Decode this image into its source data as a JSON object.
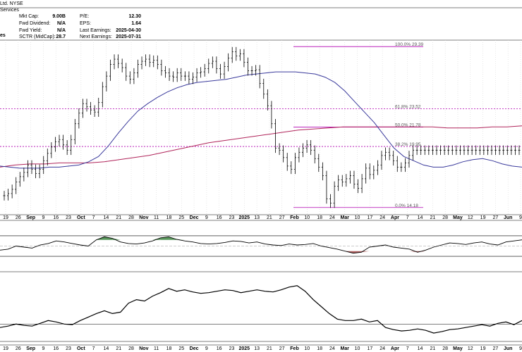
{
  "header": {
    "title_fragment": "Ltd. NYSE",
    "sector_fragment": "Services",
    "left_fragment": "es",
    "stats": [
      {
        "label": "Mkt Cap:",
        "value": "9.00B"
      },
      {
        "label": "Fwd Dividend:",
        "value": "N/A"
      },
      {
        "label": "Fwd Yield:",
        "value": "N/A"
      },
      {
        "label": "SCTR (MidCap):",
        "value": "28.7"
      }
    ],
    "stats2": [
      {
        "label": "P/E:",
        "value": "12.30"
      },
      {
        "label": "EPS:",
        "value": "1.64"
      },
      {
        "label": "Last Earnings:",
        "value": "2025-04-30"
      },
      {
        "label": "Next Earnings:",
        "value": "2025-07-31"
      }
    ]
  },
  "colors": {
    "price": "#000000",
    "ma_blue": "#3a3a9c",
    "ma_red": "#b0245a",
    "fib": "#b000b0",
    "osc_up": "#2e7d32",
    "osc_down": "#9c3a3a"
  },
  "chart_data": {
    "type": "line",
    "subtype": "ohlc-price-with-fibonacci-and-indicators",
    "x_axis_labels": [
      "19",
      "26",
      "Sep",
      "9",
      "16",
      "23",
      "Oct",
      "7",
      "14",
      "21",
      "28",
      "Nov",
      "11",
      "18",
      "25",
      "Dec",
      "9",
      "16",
      "23",
      "2025",
      "13",
      "21",
      "27",
      "Feb",
      "10",
      "18",
      "24",
      "Mar",
      "10",
      "17",
      "24",
      "Apr",
      "7",
      "14",
      "21",
      "28",
      "May",
      "12",
      "19",
      "27",
      "Jun",
      "9"
    ],
    "price_ylim": [
      13.5,
      30.0
    ],
    "fibonacci_levels": [
      {
        "label": "100.0% 29.39",
        "value": 29.39
      },
      {
        "label": "61.8% 23.52",
        "value": 23.52
      },
      {
        "label": "50.0% 21.78",
        "value": 21.78
      },
      {
        "label": "38.2% 19.95",
        "value": 19.95
      },
      {
        "label": "0.0% 14.18",
        "value": 14.18
      }
    ],
    "price_x": [
      0,
      2,
      4,
      6,
      8,
      10,
      12,
      14,
      16,
      18,
      20,
      22,
      24,
      26,
      28,
      30,
      32,
      34,
      36,
      38,
      40,
      42,
      44,
      46,
      48,
      50,
      52,
      54,
      56,
      58,
      60,
      62,
      64,
      66,
      68,
      70,
      72,
      74,
      76,
      78,
      80,
      82,
      84,
      86,
      88,
      90,
      92,
      94,
      96,
      98,
      100,
      102,
      104,
      106,
      108,
      110,
      112,
      114,
      116,
      118,
      120,
      122,
      124,
      126,
      128,
      130,
      132,
      134,
      136,
      138,
      140,
      142,
      144,
      146,
      148,
      150,
      152,
      154,
      156,
      158,
      160,
      162,
      164,
      166,
      168,
      170,
      172,
      174,
      176,
      178,
      180,
      182,
      184,
      186,
      188,
      190,
      192,
      194,
      196,
      198,
      200,
      202,
      204,
      206,
      208,
      210,
      212,
      214,
      216,
      218,
      220,
      222,
      224,
      226,
      228,
      230,
      232,
      234,
      236,
      238,
      240,
      242,
      244,
      246,
      248,
      250,
      252,
      254,
      256,
      258,
      260,
      262
    ],
    "price_close": [
      15.3,
      15.5,
      15.9,
      16.6,
      17.1,
      17.5,
      18.2,
      17.8,
      17.4,
      17.8,
      18.6,
      19.3,
      19.9,
      20.4,
      20.6,
      20.1,
      19.6,
      20.6,
      22.1,
      23.1,
      24.0,
      23.7,
      23.4,
      23.2,
      24.1,
      25.6,
      26.6,
      27.7,
      28.2,
      27.8,
      27.4,
      26.6,
      26.3,
      26.9,
      27.7,
      28.0,
      28.2,
      27.9,
      28.1,
      27.7,
      27.1,
      26.9,
      26.6,
      26.5,
      26.9,
      26.6,
      26.6,
      26.3,
      26.5,
      26.9,
      27.0,
      27.3,
      27.8,
      28.0,
      27.3,
      26.8,
      27.5,
      28.3,
      28.9,
      28.5,
      28.7,
      27.9,
      27.1,
      27.1,
      27.2,
      25.9,
      24.9,
      23.8,
      22.1,
      19.8,
      19.6,
      18.9,
      18.1,
      17.8,
      18.9,
      19.4,
      19.8,
      20.1,
      19.6,
      18.8,
      18.0,
      17.2,
      15.0,
      14.6,
      16.2,
      16.8,
      16.6,
      16.9,
      17.2,
      16.4,
      16.0,
      16.9,
      17.9,
      17.3,
      17.7,
      18.2,
      19.1,
      19.4,
      19.1,
      18.6,
      18.0,
      18.0,
      18.4,
      19.1,
      19.6,
      19.6,
      19.6,
      19.6,
      19.6,
      19.6,
      19.6,
      19.6,
      19.6,
      19.6,
      19.6,
      19.6,
      19.6,
      19.6,
      19.6,
      19.6,
      19.6,
      19.6,
      19.6,
      19.6,
      19.6,
      19.6,
      19.6,
      19.6,
      19.6,
      19.6,
      19.6,
      19.6
    ],
    "ma_blue_y": [
      18.1,
      18.0,
      17.9,
      17.9,
      17.9,
      18.0,
      18.0,
      18.1,
      18.2,
      18.5,
      19.0,
      20.0,
      21.2,
      22.3,
      23.3,
      24.0,
      24.6,
      25.1,
      25.5,
      25.8,
      26.0,
      26.1,
      26.2,
      26.3,
      26.5,
      26.7,
      26.8,
      26.9,
      27.0,
      27.0,
      27.0,
      26.9,
      26.8,
      26.5,
      26.0,
      25.2,
      24.2,
      23.2,
      22.2,
      21.0,
      19.8,
      19.0,
      18.6,
      18.2,
      18.0,
      18.0,
      18.2,
      18.5,
      18.7,
      18.8,
      18.6,
      18.3,
      18.1,
      18.0
    ],
    "ma_red_y": [
      18.0,
      18.2,
      18.3,
      18.3,
      18.4,
      18.4,
      18.4,
      18.5,
      18.7,
      18.9,
      19.1,
      19.4,
      19.7,
      20.0,
      20.3,
      20.5,
      20.7,
      20.9,
      21.1,
      21.3,
      21.5,
      21.6,
      21.7,
      21.8,
      21.8,
      21.8,
      21.8,
      21.8,
      21.8,
      21.8,
      21.7,
      21.7,
      21.7,
      21.8,
      21.8,
      21.9
    ],
    "rsi_ylim": [
      0,
      100
    ],
    "rsi_y": [
      42,
      44,
      50,
      48,
      46,
      52,
      55,
      60,
      58,
      55,
      52,
      50,
      62,
      68,
      65,
      58,
      55,
      54,
      56,
      60,
      66,
      68,
      63,
      60,
      58,
      55,
      54,
      55,
      57,
      60,
      59,
      56,
      58,
      54,
      52,
      51,
      54,
      52,
      53,
      55,
      50,
      47,
      44,
      40,
      36,
      38,
      48,
      50,
      52,
      48,
      46,
      44,
      38,
      42,
      48,
      52,
      56,
      55,
      53,
      56,
      58,
      54,
      52,
      58,
      60,
      62
    ],
    "rsi_levels": [
      70,
      50,
      30
    ],
    "rel_ylim": [
      0,
      100
    ],
    "rel_y": [
      20,
      22,
      25,
      23,
      22,
      26,
      30,
      28,
      25,
      24,
      30,
      35,
      40,
      44,
      40,
      42,
      55,
      60,
      58,
      65,
      70,
      76,
      72,
      74,
      71,
      69,
      70,
      72,
      74,
      73,
      70,
      72,
      74,
      72,
      71,
      74,
      78,
      80,
      72,
      60,
      50,
      40,
      32,
      30,
      30,
      32,
      28,
      30,
      20,
      17,
      15,
      16,
      18,
      16,
      12,
      14,
      17,
      18,
      20,
      22,
      24,
      22,
      26,
      28,
      24,
      30
    ]
  }
}
